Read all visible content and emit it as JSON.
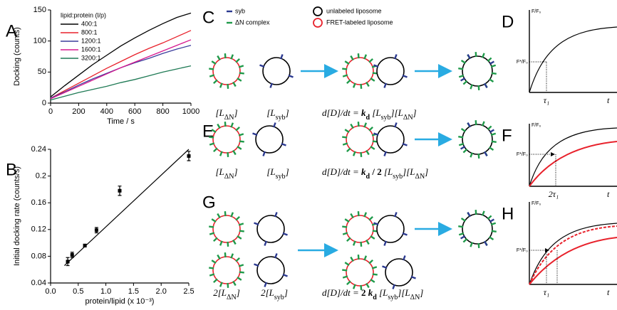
{
  "chart_data": [
    {
      "type": "line",
      "panel_label": "A",
      "xlabel": "Time / s",
      "ylabel": "Docking  (counts)",
      "legend_title": "lipid:protein (l/p)",
      "x": [
        0,
        100,
        200,
        300,
        400,
        500,
        600,
        700,
        800,
        900,
        1000
      ],
      "series": [
        {
          "name": "400:1",
          "color": "#000000",
          "values": [
            10,
            28,
            45,
            62,
            77,
            92,
            105,
            117,
            128,
            138,
            145
          ]
        },
        {
          "name": "800:1",
          "color": "#e8212b",
          "values": [
            8,
            20,
            32,
            44,
            56,
            67,
            78,
            88,
            97,
            107,
            117
          ]
        },
        {
          "name": "1200:1",
          "color": "#3a3d9c",
          "values": [
            8,
            18,
            29,
            39,
            48,
            57,
            65,
            72,
            80,
            87,
            93
          ]
        },
        {
          "name": "1600:1",
          "color": "#d6188f",
          "values": [
            7,
            17,
            27,
            37,
            47,
            57,
            66,
            75,
            84,
            93,
            102
          ]
        },
        {
          "name": "3200:1",
          "color": "#1f7a55",
          "values": [
            5,
            11,
            17,
            22,
            27,
            33,
            38,
            44,
            50,
            55,
            60
          ]
        }
      ],
      "xlim": [
        0,
        1000
      ],
      "xticks": [
        0,
        200,
        400,
        600,
        800,
        1000
      ],
      "ylim": [
        0,
        150
      ],
      "yticks": [
        0,
        50,
        100,
        150
      ]
    },
    {
      "type": "scatter",
      "panel_label": "B",
      "xlabel": "protein/lipid (x 10⁻³)",
      "ylabel": "Initial docking rate  (counts/s)",
      "x": [
        0.31,
        0.39,
        0.62,
        0.83,
        1.25,
        2.5
      ],
      "values": [
        0.072,
        0.082,
        0.096,
        0.119,
        0.178,
        0.23
      ],
      "errors": [
        0.006,
        0.004,
        0.002,
        0.004,
        0.007,
        0.007
      ],
      "fit_x": [
        0.25,
        2.5
      ],
      "fit_y": [
        0.066,
        0.24
      ],
      "color": "#000000",
      "xlim": [
        0,
        2.5
      ],
      "xticks": [
        {
          "value": 0,
          "label": "0.0"
        },
        0.5,
        {
          "value": 1,
          "label": "1.0"
        },
        1.5,
        {
          "value": 2,
          "label": "2.0"
        },
        2.5
      ],
      "ylim": [
        0.04,
        0.24
      ],
      "yticks": [
        0.04,
        0.08,
        0.12,
        0.16,
        0.2,
        0.24
      ]
    }
  ],
  "diagram": {
    "legend": {
      "syb": "syb",
      "dn": "ΔN complex",
      "unlabeled": "unlabeled liposome",
      "fret": "FRET-labeled liposome"
    },
    "C": {
      "letter": "C",
      "left": [
        "[L",
        "ΔN",
        "]"
      ],
      "right": [
        "[L",
        "syb",
        "]"
      ],
      "eq": [
        "d[D]/dt = ",
        "k",
        "d",
        " [L",
        "syb",
        "][L",
        "ΔN",
        "]"
      ]
    },
    "E": {
      "letter": "E",
      "left": [
        "[L",
        "ΔN",
        "]"
      ],
      "right": [
        "[L",
        "syb",
        "]"
      ],
      "eq": [
        "d[D]/dt = ",
        "k",
        "d",
        " / ",
        "2",
        " [L",
        "syb",
        "][L",
        "ΔN",
        "]"
      ]
    },
    "G": {
      "letter": "G",
      "left": [
        "2[L",
        "ΔN",
        "]"
      ],
      "right": [
        "2[L",
        "syb",
        "]"
      ],
      "eq": [
        "d[D]/dt = ",
        "2 ",
        "k",
        "d",
        " [L",
        "syb",
        "][L",
        "ΔN",
        "]"
      ]
    }
  },
  "schematics": {
    "D": {
      "letter": "D",
      "ylabel": "F/F₀",
      "level": "F*/F₀",
      "tau": "τ₁",
      "t": "t"
    },
    "F": {
      "letter": "F",
      "ylabel": "F/F₀",
      "level": "F*/F₀",
      "tau": "2τ₁",
      "t": "t"
    },
    "H": {
      "letter": "H",
      "ylabel": "F/F₀",
      "level": "F*/F₀",
      "tau": "τ₁",
      "t": "t"
    }
  }
}
